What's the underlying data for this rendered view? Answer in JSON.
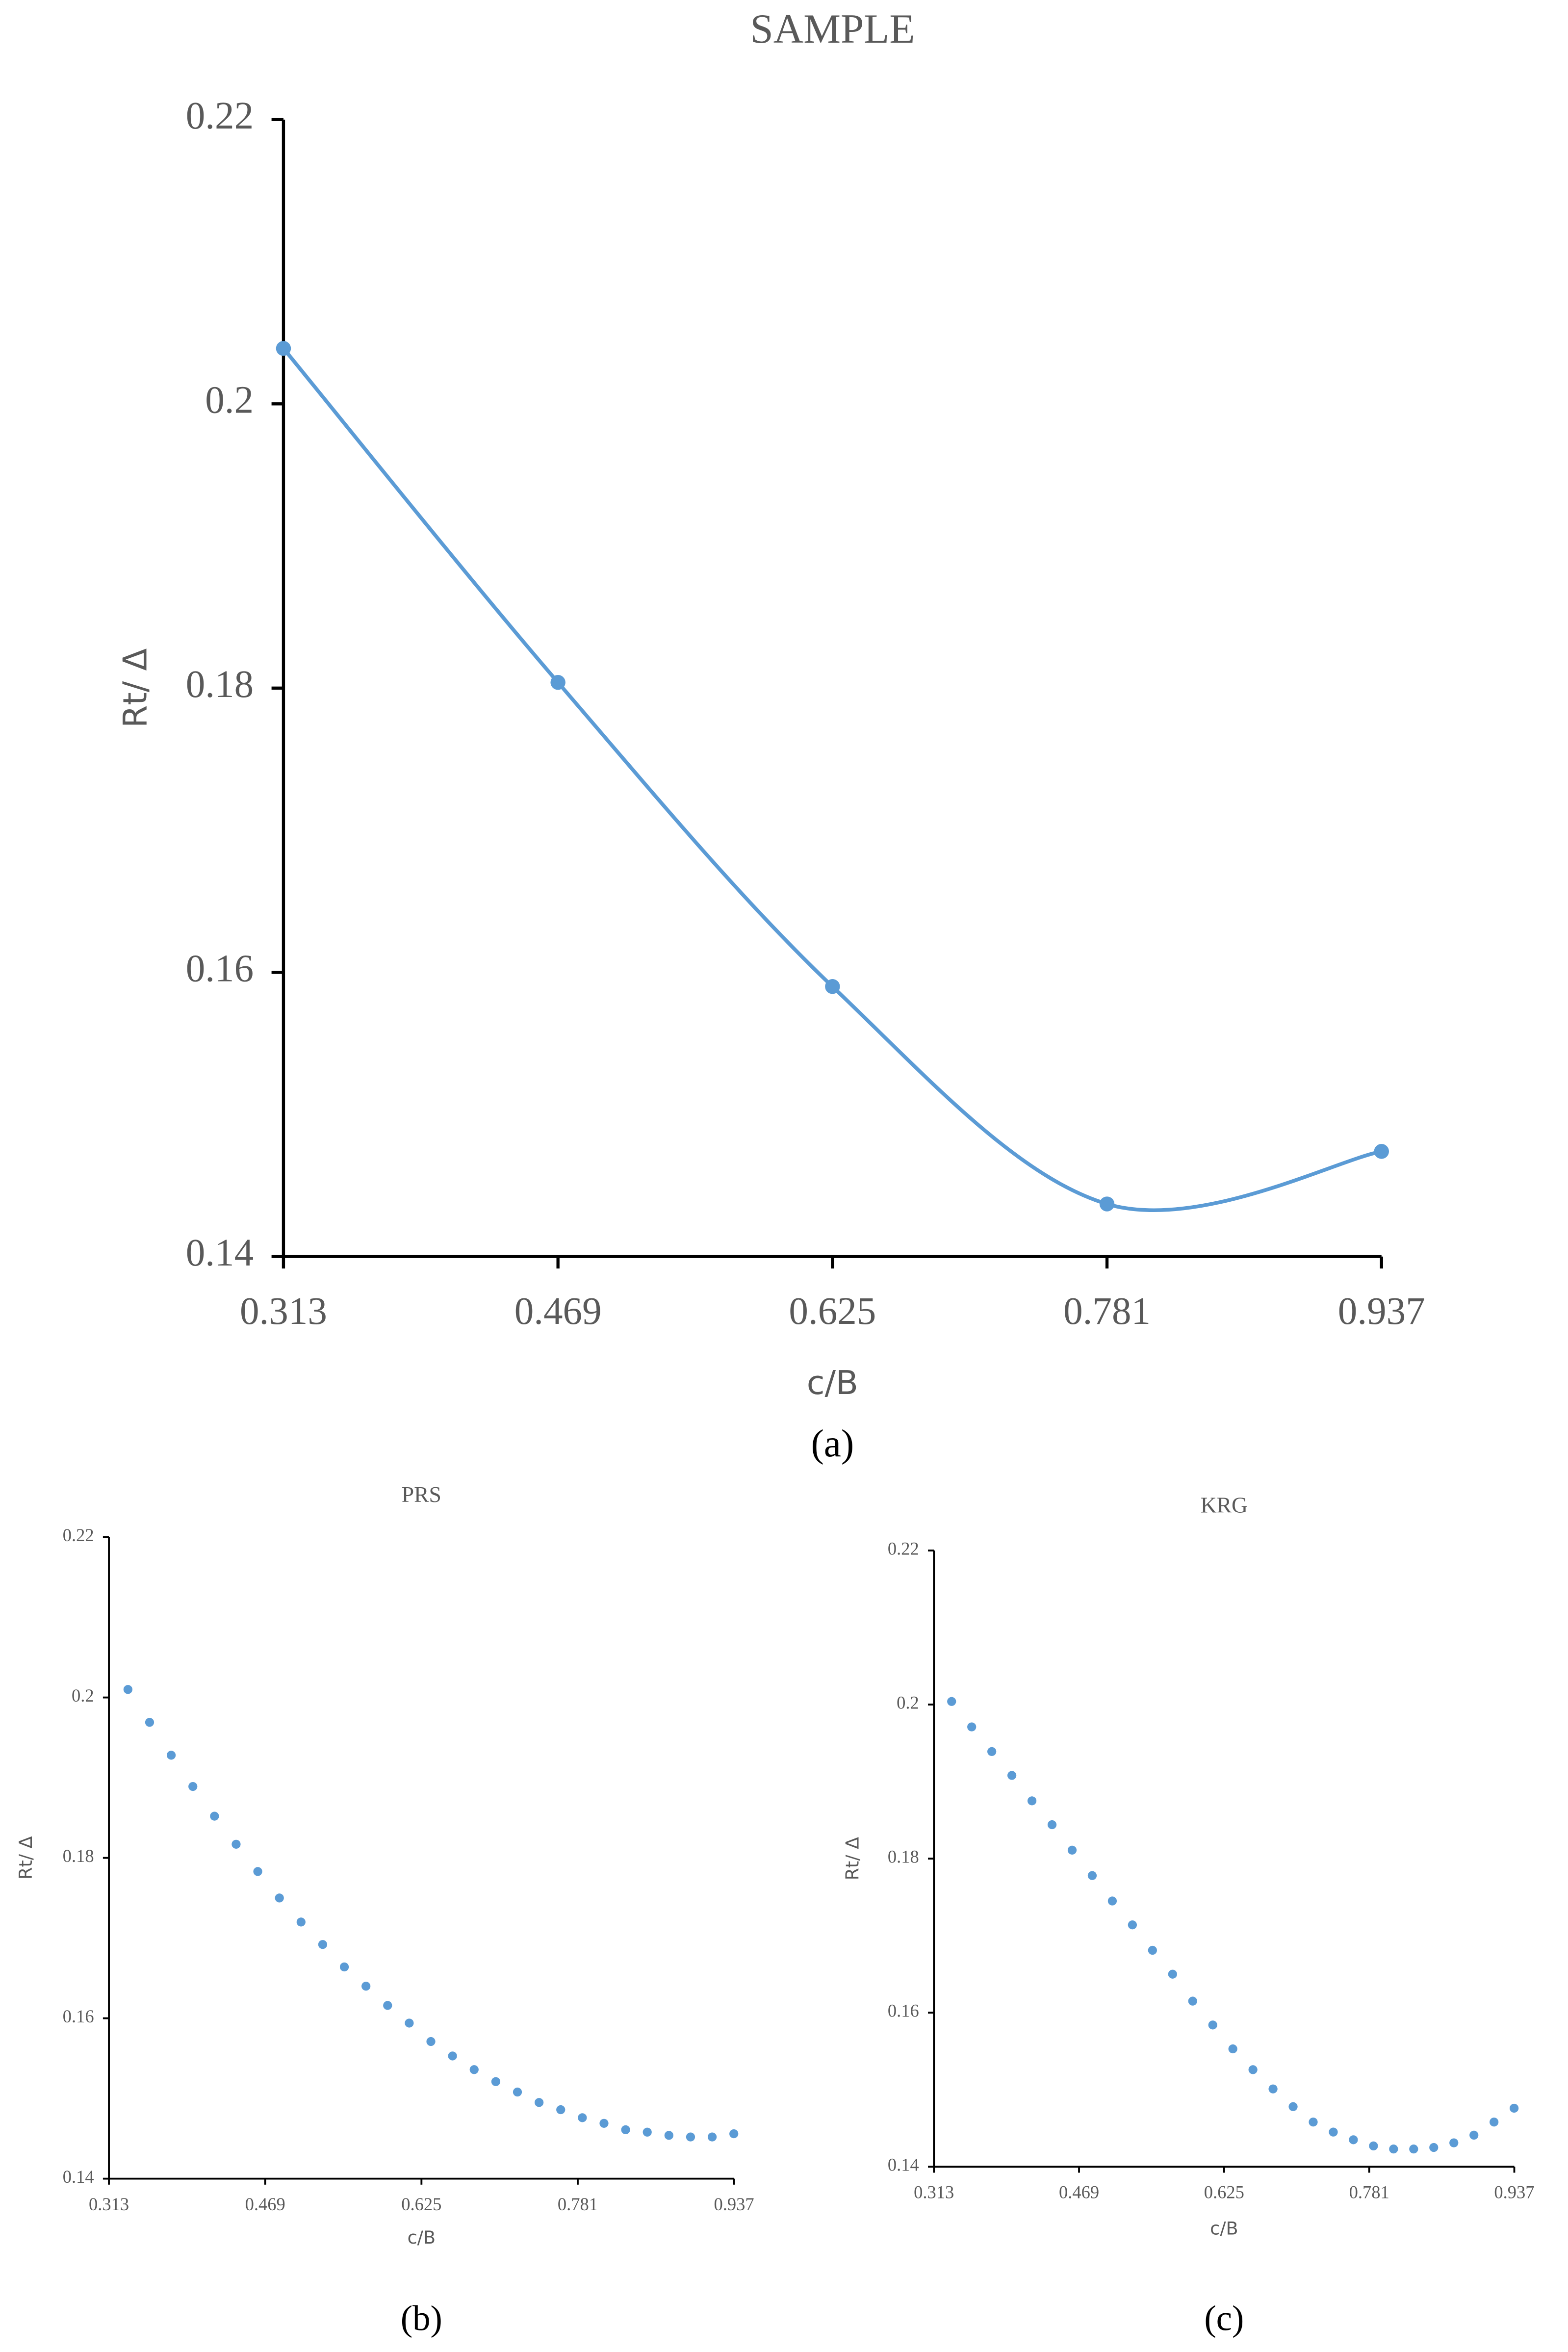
{
  "chart_data": [
    {
      "type": "line",
      "title": "SAMPLE",
      "x_label": "c/B",
      "y_label": "Rt/ Δ",
      "caption": "(a)",
      "color": "#5b9bd5",
      "x": [
        0.313,
        0.469,
        0.625,
        0.781,
        0.937
      ],
      "values": [
        0.2039,
        0.1804,
        0.159,
        0.1437,
        0.1474
      ],
      "xlim": [
        0.313,
        0.937
      ],
      "xticks": [
        0.313,
        0.469,
        0.625,
        0.781,
        0.937
      ],
      "ylim": [
        0.14,
        0.22
      ],
      "yticks": [
        0.14,
        0.16,
        0.18,
        0.2,
        0.22
      ]
    },
    {
      "type": "scatter",
      "title": "PRS",
      "x_label": "c/B",
      "y_label": "Rt/ Δ",
      "caption": "(b)",
      "color": "#5b9bd5",
      "x": [
        0.332,
        0.3536,
        0.3752,
        0.3968,
        0.4184,
        0.44,
        0.4616,
        0.4832,
        0.5048,
        0.5264,
        0.548,
        0.5696,
        0.5912,
        0.6128,
        0.6344,
        0.656,
        0.6776,
        0.6992,
        0.7208,
        0.7424,
        0.764,
        0.7856,
        0.8072,
        0.8288,
        0.8504,
        0.872,
        0.8936,
        0.9152,
        0.9368
      ],
      "values": [
        0.201,
        0.1969,
        0.1928,
        0.1889,
        0.1852,
        0.1817,
        0.1783,
        0.175,
        0.172,
        0.1692,
        0.1664,
        0.164,
        0.1616,
        0.1594,
        0.1571,
        0.1553,
        0.1536,
        0.1521,
        0.1508,
        0.1495,
        0.1486,
        0.1476,
        0.1469,
        0.1461,
        0.1458,
        0.1454,
        0.1452,
        0.1452,
        0.1456
      ],
      "xlim": [
        0.313,
        0.937
      ],
      "xticks": [
        0.313,
        0.469,
        0.625,
        0.781,
        0.937
      ],
      "ylim": [
        0.14,
        0.22
      ],
      "yticks": [
        0.14,
        0.16,
        0.18,
        0.2,
        0.22
      ]
    },
    {
      "type": "scatter",
      "title": "KRG",
      "x_label": "c/B",
      "y_label": "Rt/ Δ",
      "caption": "(c)",
      "color": "#5b9bd5",
      "x": [
        0.332,
        0.3536,
        0.3752,
        0.3968,
        0.4184,
        0.44,
        0.4616,
        0.4832,
        0.5048,
        0.5264,
        0.548,
        0.5696,
        0.5912,
        0.6128,
        0.6344,
        0.656,
        0.6776,
        0.6992,
        0.7208,
        0.7424,
        0.764,
        0.7856,
        0.8072,
        0.8288,
        0.8504,
        0.872,
        0.8936,
        0.9152,
        0.9368
      ],
      "values": [
        0.2004,
        0.1971,
        0.1939,
        0.1908,
        0.1875,
        0.1844,
        0.1811,
        0.1778,
        0.1745,
        0.1714,
        0.1681,
        0.165,
        0.1615,
        0.1584,
        0.1553,
        0.1526,
        0.1501,
        0.1478,
        0.1458,
        0.1445,
        0.1435,
        0.1427,
        0.1423,
        0.1423,
        0.1425,
        0.1431,
        0.1441,
        0.1458,
        0.1476
      ],
      "xlim": [
        0.313,
        0.937
      ],
      "xticks": [
        0.313,
        0.469,
        0.625,
        0.781,
        0.937
      ],
      "ylim": [
        0.14,
        0.22
      ],
      "yticks": [
        0.14,
        0.16,
        0.18,
        0.2,
        0.22
      ]
    }
  ]
}
